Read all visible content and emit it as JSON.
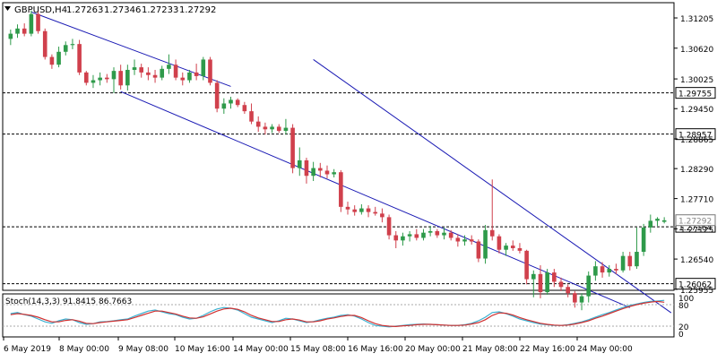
{
  "header": {
    "symbol_timeframe": "GBPUSD,H4",
    "open": "1.27263",
    "high": "1.27346",
    "low": "1.27233",
    "close": "1.27292"
  },
  "colors": {
    "bull": "#2e9a4a",
    "bear": "#d0404c",
    "channel": "#1a1ab4",
    "level": "#000000",
    "stoch_main": "#3ab0d0",
    "stoch_signal": "#d03030"
  },
  "chart_data": [
    {
      "type": "candlestick",
      "symbol": "GBPUSD",
      "timeframe": "H4",
      "ylim": [
        1.25935,
        1.315
      ],
      "y_ticks": [
        "1.31205",
        "1.30620",
        "1.30025",
        "1.29450",
        "1.28865",
        "1.28290",
        "1.27710",
        "1.27125",
        "1.26540",
        "1.25955"
      ],
      "x_ticks": [
        "6 May 2019",
        "8 May 00:00",
        "9 May 08:00",
        "10 May 16:00",
        "14 May 00:00",
        "15 May 08:00",
        "16 May 16:00",
        "20 May 00:00",
        "21 May 08:00",
        "22 May 16:00",
        "24 May 00:00"
      ],
      "candles": [
        {
          "o": 1.308,
          "h": 1.3098,
          "l": 1.3068,
          "c": 1.309
        },
        {
          "o": 1.309,
          "h": 1.3108,
          "l": 1.3082,
          "c": 1.31
        },
        {
          "o": 1.31,
          "h": 1.311,
          "l": 1.3085,
          "c": 1.309
        },
        {
          "o": 1.309,
          "h": 1.3135,
          "l": 1.3085,
          "c": 1.3128
        },
        {
          "o": 1.3128,
          "h": 1.3135,
          "l": 1.309,
          "c": 1.3095
        },
        {
          "o": 1.3095,
          "h": 1.31,
          "l": 1.304,
          "c": 1.3045
        },
        {
          "o": 1.3045,
          "h": 1.305,
          "l": 1.3022,
          "c": 1.303
        },
        {
          "o": 1.303,
          "h": 1.3065,
          "l": 1.3025,
          "c": 1.3055
        },
        {
          "o": 1.3055,
          "h": 1.3075,
          "l": 1.3048,
          "c": 1.3068
        },
        {
          "o": 1.3068,
          "h": 1.308,
          "l": 1.306,
          "c": 1.307
        },
        {
          "o": 1.307,
          "h": 1.3078,
          "l": 1.301,
          "c": 1.3015
        },
        {
          "o": 1.3015,
          "h": 1.3018,
          "l": 1.299,
          "c": 1.2995
        },
        {
          "o": 1.2995,
          "h": 1.301,
          "l": 1.2985,
          "c": 1.3
        },
        {
          "o": 1.3,
          "h": 1.3015,
          "l": 1.299,
          "c": 1.3005
        },
        {
          "o": 1.3005,
          "h": 1.3012,
          "l": 1.2995,
          "c": 1.3002
        },
        {
          "o": 1.3002,
          "h": 1.3025,
          "l": 1.2975,
          "c": 1.3018
        },
        {
          "o": 1.3018,
          "h": 1.303,
          "l": 1.2982,
          "c": 1.299
        },
        {
          "o": 1.299,
          "h": 1.303,
          "l": 1.298,
          "c": 1.302
        },
        {
          "o": 1.302,
          "h": 1.304,
          "l": 1.301,
          "c": 1.3025
        },
        {
          "o": 1.3025,
          "h": 1.3032,
          "l": 1.3005,
          "c": 1.3015
        },
        {
          "o": 1.3015,
          "h": 1.3025,
          "l": 1.3,
          "c": 1.301
        },
        {
          "o": 1.301,
          "h": 1.302,
          "l": 1.2995,
          "c": 1.3005
        },
        {
          "o": 1.3005,
          "h": 1.3028,
          "l": 1.3,
          "c": 1.3022
        },
        {
          "o": 1.3022,
          "h": 1.305,
          "l": 1.3012,
          "c": 1.303
        },
        {
          "o": 1.303,
          "h": 1.304,
          "l": 1.3,
          "c": 1.3005
        },
        {
          "o": 1.3005,
          "h": 1.3015,
          "l": 1.299,
          "c": 1.3
        },
        {
          "o": 1.3,
          "h": 1.302,
          "l": 1.2995,
          "c": 1.3015
        },
        {
          "o": 1.3015,
          "h": 1.3032,
          "l": 1.3,
          "c": 1.3008
        },
        {
          "o": 1.3008,
          "h": 1.3045,
          "l": 1.3,
          "c": 1.304
        },
        {
          "o": 1.304,
          "h": 1.3045,
          "l": 1.299,
          "c": 1.2995
        },
        {
          "o": 1.2995,
          "h": 1.3,
          "l": 1.2938,
          "c": 1.2945
        },
        {
          "o": 1.2945,
          "h": 1.2965,
          "l": 1.2935,
          "c": 1.2955
        },
        {
          "o": 1.2955,
          "h": 1.2968,
          "l": 1.2945,
          "c": 1.2962
        },
        {
          "o": 1.2962,
          "h": 1.2965,
          "l": 1.2948,
          "c": 1.2952
        },
        {
          "o": 1.2952,
          "h": 1.2958,
          "l": 1.2935,
          "c": 1.294
        },
        {
          "o": 1.294,
          "h": 1.2955,
          "l": 1.2915,
          "c": 1.292
        },
        {
          "o": 1.292,
          "h": 1.293,
          "l": 1.29,
          "c": 1.291
        },
        {
          "o": 1.291,
          "h": 1.2918,
          "l": 1.2895,
          "c": 1.2905
        },
        {
          "o": 1.2905,
          "h": 1.2915,
          "l": 1.2898,
          "c": 1.291
        },
        {
          "o": 1.291,
          "h": 1.2915,
          "l": 1.2898,
          "c": 1.2902
        },
        {
          "o": 1.2902,
          "h": 1.2925,
          "l": 1.2895,
          "c": 1.2908
        },
        {
          "o": 1.2908,
          "h": 1.2915,
          "l": 1.282,
          "c": 1.283
        },
        {
          "o": 1.283,
          "h": 1.287,
          "l": 1.2815,
          "c": 1.2845
        },
        {
          "o": 1.2845,
          "h": 1.285,
          "l": 1.28,
          "c": 1.2815
        },
        {
          "o": 1.2815,
          "h": 1.2842,
          "l": 1.2805,
          "c": 1.283
        },
        {
          "o": 1.283,
          "h": 1.284,
          "l": 1.2812,
          "c": 1.2825
        },
        {
          "o": 1.2825,
          "h": 1.2835,
          "l": 1.281,
          "c": 1.2818
        },
        {
          "o": 1.2818,
          "h": 1.2828,
          "l": 1.2812,
          "c": 1.2822
        },
        {
          "o": 1.2822,
          "h": 1.2826,
          "l": 1.2745,
          "c": 1.2755
        },
        {
          "o": 1.2755,
          "h": 1.2765,
          "l": 1.274,
          "c": 1.275
        },
        {
          "o": 1.275,
          "h": 1.2758,
          "l": 1.2738,
          "c": 1.2745
        },
        {
          "o": 1.2745,
          "h": 1.276,
          "l": 1.274,
          "c": 1.2752
        },
        {
          "o": 1.2752,
          "h": 1.2758,
          "l": 1.2735,
          "c": 1.2745
        },
        {
          "o": 1.2745,
          "h": 1.2755,
          "l": 1.2738,
          "c": 1.2742
        },
        {
          "o": 1.2742,
          "h": 1.2752,
          "l": 1.2725,
          "c": 1.2735
        },
        {
          "o": 1.2735,
          "h": 1.274,
          "l": 1.2692,
          "c": 1.27
        },
        {
          "o": 1.27,
          "h": 1.2708,
          "l": 1.2675,
          "c": 1.269
        },
        {
          "o": 1.269,
          "h": 1.2705,
          "l": 1.268,
          "c": 1.2698
        },
        {
          "o": 1.2698,
          "h": 1.2708,
          "l": 1.2688,
          "c": 1.2702
        },
        {
          "o": 1.2702,
          "h": 1.2712,
          "l": 1.269,
          "c": 1.2695
        },
        {
          "o": 1.2695,
          "h": 1.2712,
          "l": 1.269,
          "c": 1.2705
        },
        {
          "o": 1.2705,
          "h": 1.2718,
          "l": 1.2698,
          "c": 1.2708
        },
        {
          "o": 1.2708,
          "h": 1.2712,
          "l": 1.2695,
          "c": 1.27
        },
        {
          "o": 1.27,
          "h": 1.2715,
          "l": 1.2692,
          "c": 1.2705
        },
        {
          "o": 1.2705,
          "h": 1.271,
          "l": 1.269,
          "c": 1.2695
        },
        {
          "o": 1.2695,
          "h": 1.2702,
          "l": 1.2678,
          "c": 1.2688
        },
        {
          "o": 1.2688,
          "h": 1.27,
          "l": 1.268,
          "c": 1.2692
        },
        {
          "o": 1.2692,
          "h": 1.27,
          "l": 1.2682,
          "c": 1.2688
        },
        {
          "o": 1.2688,
          "h": 1.2692,
          "l": 1.2648,
          "c": 1.2655
        },
        {
          "o": 1.2655,
          "h": 1.272,
          "l": 1.2645,
          "c": 1.271
        },
        {
          "o": 1.271,
          "h": 1.2808,
          "l": 1.269,
          "c": 1.2698
        },
        {
          "o": 1.2698,
          "h": 1.2702,
          "l": 1.2665,
          "c": 1.2672
        },
        {
          "o": 1.2672,
          "h": 1.2685,
          "l": 1.266,
          "c": 1.268
        },
        {
          "o": 1.268,
          "h": 1.269,
          "l": 1.267,
          "c": 1.2675
        },
        {
          "o": 1.2675,
          "h": 1.2685,
          "l": 1.2665,
          "c": 1.267
        },
        {
          "o": 1.267,
          "h": 1.2672,
          "l": 1.2605,
          "c": 1.2615
        },
        {
          "o": 1.2615,
          "h": 1.2632,
          "l": 1.258,
          "c": 1.2625
        },
        {
          "o": 1.2625,
          "h": 1.2642,
          "l": 1.2578,
          "c": 1.259
        },
        {
          "o": 1.259,
          "h": 1.2635,
          "l": 1.2585,
          "c": 1.2628
        },
        {
          "o": 1.2628,
          "h": 1.2635,
          "l": 1.26,
          "c": 1.261
        },
        {
          "o": 1.261,
          "h": 1.2618,
          "l": 1.2592,
          "c": 1.26
        },
        {
          "o": 1.26,
          "h": 1.2605,
          "l": 1.258,
          "c": 1.2588
        },
        {
          "o": 1.2588,
          "h": 1.2592,
          "l": 1.256,
          "c": 1.257
        },
        {
          "o": 1.257,
          "h": 1.2588,
          "l": 1.2555,
          "c": 1.2582
        },
        {
          "o": 1.2582,
          "h": 1.263,
          "l": 1.257,
          "c": 1.2622
        },
        {
          "o": 1.2622,
          "h": 1.265,
          "l": 1.2612,
          "c": 1.264
        },
        {
          "o": 1.264,
          "h": 1.2648,
          "l": 1.2618,
          "c": 1.2628
        },
        {
          "o": 1.2628,
          "h": 1.2642,
          "l": 1.262,
          "c": 1.2635
        },
        {
          "o": 1.2635,
          "h": 1.2645,
          "l": 1.2625,
          "c": 1.2632
        },
        {
          "o": 1.2632,
          "h": 1.2668,
          "l": 1.2628,
          "c": 1.266
        },
        {
          "o": 1.266,
          "h": 1.2668,
          "l": 1.2632,
          "c": 1.264
        },
        {
          "o": 1.264,
          "h": 1.2715,
          "l": 1.2635,
          "c": 1.2668
        },
        {
          "o": 1.2668,
          "h": 1.2722,
          "l": 1.266,
          "c": 1.2715
        },
        {
          "o": 1.2715,
          "h": 1.274,
          "l": 1.2705,
          "c": 1.2728
        },
        {
          "o": 1.2728,
          "h": 1.2735,
          "l": 1.2718,
          "c": 1.2732
        },
        {
          "o": 1.2726,
          "h": 1.2735,
          "l": 1.2723,
          "c": 1.2729
        }
      ],
      "channel_lines": [
        {
          "name": "upper",
          "x": [
            44,
            96
          ],
          "y": [
            1.304,
            1.255
          ]
        },
        {
          "name": "lower",
          "x": [
            16,
            90
          ],
          "y": [
            1.2978,
            1.256
          ]
        },
        {
          "name": "top",
          "x": [
            3,
            32
          ],
          "y": [
            1.3132,
            1.2988
          ]
        }
      ],
      "horizontal_levels": [
        {
          "label": "1.29755",
          "value": 1.29755
        },
        {
          "label": "1.28957",
          "value": 1.28957
        },
        {
          "label": "1.27164",
          "value": 1.27164
        },
        {
          "label": "1.26062",
          "value": 1.26062
        }
      ],
      "current_price_label": "1.27292",
      "current_price": 1.27292
    },
    {
      "type": "line",
      "title": "Stoch(14,3,3) 91.8415 86.7663",
      "ylim": [
        0,
        100
      ],
      "y_ticks": [
        "100",
        "80",
        "20",
        "0"
      ],
      "levels": [
        80,
        20
      ],
      "series": [
        {
          "name": "main",
          "values": [
            55,
            58,
            52,
            48,
            40,
            32,
            28,
            35,
            40,
            38,
            30,
            25,
            27,
            32,
            33,
            35,
            38,
            40,
            48,
            55,
            62,
            65,
            60,
            55,
            52,
            45,
            40,
            42,
            50,
            60,
            68,
            72,
            70,
            65,
            55,
            45,
            40,
            35,
            30,
            35,
            42,
            40,
            35,
            30,
            33,
            38,
            42,
            45,
            50,
            52,
            48,
            40,
            30,
            22,
            20,
            18,
            20,
            22,
            24,
            25,
            26,
            25,
            24,
            23,
            22,
            22,
            24,
            28,
            35,
            45,
            58,
            60,
            55,
            48,
            40,
            35,
            30,
            26,
            24,
            22,
            22,
            24,
            28,
            32,
            38,
            45,
            52,
            58,
            65,
            72,
            78,
            82,
            86,
            89,
            90,
            92
          ]
        },
        {
          "name": "signal",
          "values": [
            52,
            55,
            53,
            50,
            45,
            38,
            32,
            32,
            36,
            38,
            34,
            28,
            27,
            30,
            32,
            34,
            36,
            38,
            44,
            50,
            56,
            62,
            62,
            58,
            54,
            48,
            43,
            42,
            46,
            54,
            62,
            68,
            70,
            67,
            60,
            50,
            43,
            38,
            33,
            33,
            38,
            40,
            37,
            32,
            32,
            35,
            40,
            43,
            47,
            50,
            50,
            44,
            35,
            27,
            22,
            20,
            19,
            21,
            22,
            24,
            25,
            25,
            24,
            23,
            22,
            22,
            23,
            26,
            30,
            38,
            50,
            57,
            56,
            51,
            44,
            38,
            33,
            28,
            25,
            23,
            22,
            23,
            26,
            30,
            35,
            42,
            48,
            55,
            62,
            69,
            75,
            80,
            84,
            87,
            89,
            86.77
          ]
        }
      ]
    }
  ]
}
